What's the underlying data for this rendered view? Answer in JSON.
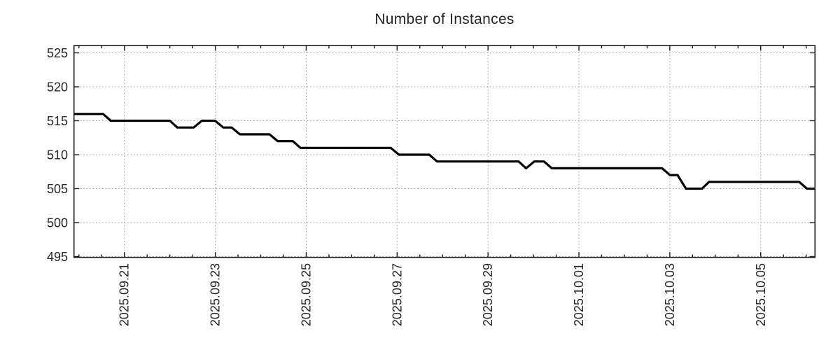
{
  "chart": {
    "title": "Number of Instances"
  },
  "chart_data": {
    "type": "line",
    "title": "Number of Instances",
    "x_axis": {
      "unit": "date",
      "note": "x values are fractional days since 2025-09-20 00:00",
      "range_days": [
        -0.105,
        16.193
      ],
      "major_ticks": [
        {
          "day": 1,
          "label": "2025.09.21"
        },
        {
          "day": 3,
          "label": "2025.09.23"
        },
        {
          "day": 5,
          "label": "2025.09.25"
        },
        {
          "day": 7,
          "label": "2025.09.27"
        },
        {
          "day": 9,
          "label": "2025.09.29"
        },
        {
          "day": 11,
          "label": "2025.10.01"
        },
        {
          "day": 13,
          "label": "2025.10.03"
        },
        {
          "day": 15,
          "label": "2025.10.05"
        }
      ],
      "minor_tick_step_days": 0.5
    },
    "y_axis": {
      "range": [
        494.9,
        526.1
      ],
      "ticks": [
        495,
        500,
        505,
        510,
        515,
        520,
        525
      ]
    },
    "grid": true,
    "legend": false,
    "colors": {
      "line": "#000000",
      "grid": "#9c9c9c",
      "axis": "#1c1c1c",
      "text": "#262626",
      "background": "#ffffff"
    },
    "series": [
      {
        "name": "instances",
        "points": [
          [
            -0.105,
            516
          ],
          [
            0.531,
            516
          ],
          [
            0.701,
            515
          ],
          [
            2.001,
            515
          ],
          [
            2.164,
            514
          ],
          [
            2.524,
            514
          ],
          [
            2.703,
            515
          ],
          [
            2.995,
            515
          ],
          [
            3.176,
            514
          ],
          [
            3.36,
            514
          ],
          [
            3.54,
            513
          ],
          [
            4.192,
            513
          ],
          [
            4.372,
            512
          ],
          [
            4.705,
            512
          ],
          [
            4.874,
            511
          ],
          [
            6.861,
            511
          ],
          [
            7.041,
            510
          ],
          [
            7.708,
            510
          ],
          [
            7.877,
            509
          ],
          [
            9.674,
            509
          ],
          [
            9.839,
            508
          ],
          [
            10.018,
            509
          ],
          [
            10.233,
            509
          ],
          [
            10.403,
            508
          ],
          [
            12.831,
            508
          ],
          [
            13.001,
            507
          ],
          [
            13.17,
            507
          ],
          [
            13.355,
            505
          ],
          [
            13.709,
            505
          ],
          [
            13.863,
            506
          ],
          [
            15.845,
            506
          ],
          [
            16.015,
            505
          ],
          [
            16.193,
            505
          ]
        ]
      }
    ]
  }
}
